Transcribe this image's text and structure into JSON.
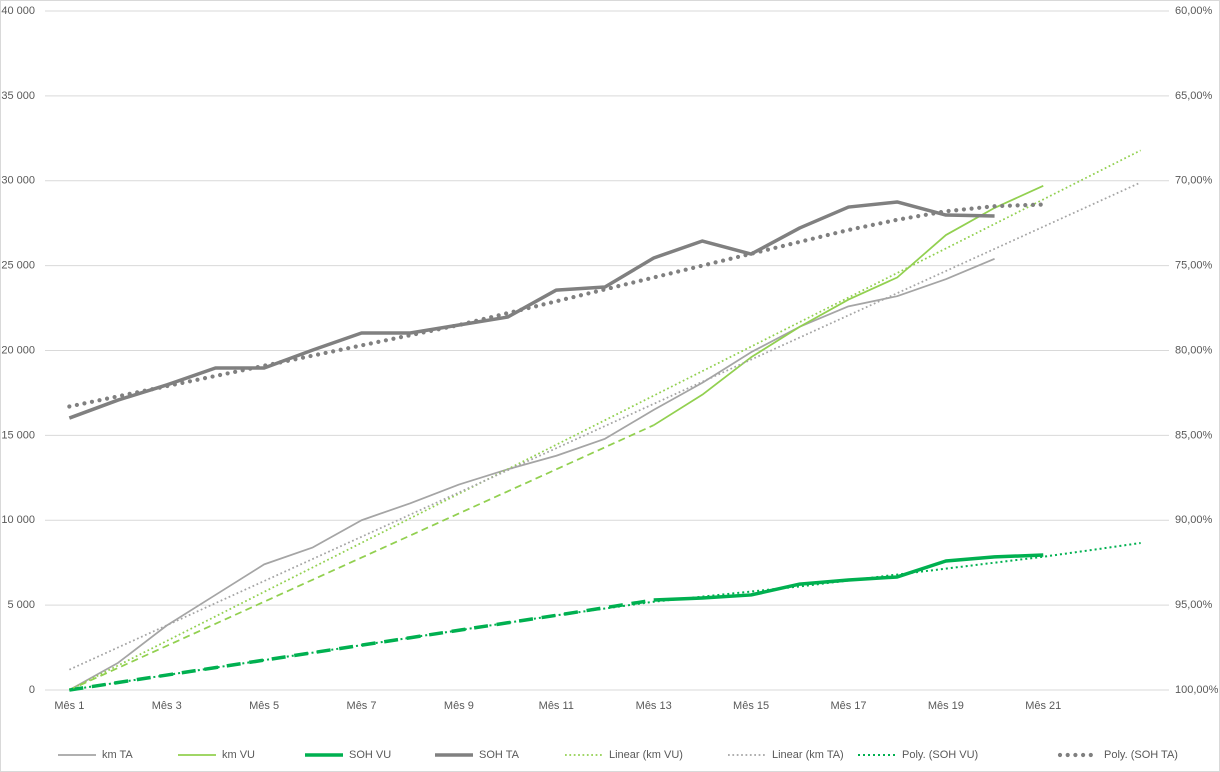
{
  "chart_data": {
    "type": "line",
    "categories": [
      "Mês 1",
      null,
      "Mês 3",
      null,
      "Mês 5",
      null,
      "Mês 7",
      null,
      "Mês 9",
      null,
      "Mês 11",
      null,
      "Mês 13",
      null,
      "Mês 15",
      null,
      "Mês 17",
      null,
      "Mês 19",
      null,
      "Mês 21",
      null,
      null
    ],
    "ylim": [
      0,
      40000
    ],
    "yticks": [
      0,
      {
        "value": 5000,
        "label": "5 000"
      },
      {
        "value": 10000,
        "label": "10 000"
      },
      {
        "value": 15000,
        "label": "15 000"
      },
      {
        "value": 20000,
        "label": "20 000"
      },
      {
        "value": 25000,
        "label": "25 000"
      },
      {
        "value": 30000,
        "label": "30 000"
      },
      {
        "value": 35000,
        "label": "35 000"
      },
      {
        "value": 40000,
        "label": "40 000"
      }
    ],
    "y2lim": [
      100,
      60
    ],
    "y2ticks": [
      {
        "value": 100,
        "label": "100,00%"
      },
      {
        "value": 95,
        "label": "95,00%"
      },
      {
        "value": 90,
        "label": "90,00%"
      },
      {
        "value": 85,
        "label": "85,00%"
      },
      {
        "value": 80,
        "label": "80,00%"
      },
      {
        "value": 75,
        "label": "75,00%"
      },
      {
        "value": 70,
        "label": "70,00%"
      },
      {
        "value": 65,
        "label": "65,00%"
      },
      {
        "value": 60,
        "label": "60,00%"
      }
    ],
    "grid": true,
    "legend": "bottom",
    "series": [
      {
        "name": "km TA",
        "color": "#a5a5a5",
        "style": "solid",
        "weight": "thin",
        "values": [
          0,
          1600,
          3800,
          5600,
          7400,
          8400,
          10000,
          11000,
          12100,
          13000,
          13800,
          14800,
          16500,
          18100,
          19900,
          21400,
          22600,
          23200,
          24200,
          25400,
          null,
          null,
          null
        ]
      },
      {
        "name": "km VU",
        "color": "#92d050",
        "style": "solid",
        "weight": "thin",
        "dashed_until": "Mês 13",
        "values": [
          0,
          1300,
          2600,
          3900,
          5200,
          6500,
          7800,
          9100,
          10400,
          11700,
          13000,
          14300,
          15600,
          17400,
          19600,
          21400,
          23000,
          24300,
          26800,
          28400,
          29700,
          null,
          null
        ]
      },
      {
        "name": "SOH VU",
        "color": "#00b050",
        "style": "solid",
        "weight": "thick",
        "axis": "y2",
        "dashed_until": "Mês 13",
        "values": [
          100,
          99.56,
          99.12,
          98.68,
          98.24,
          97.8,
          97.36,
          96.92,
          96.48,
          96.04,
          95.6,
          95.15,
          94.7,
          94.58,
          94.4,
          93.76,
          93.52,
          93.34,
          92.4,
          92.16,
          92.05,
          null,
          null
        ]
      },
      {
        "name": "SOH TA",
        "color": "#808080",
        "style": "solid",
        "weight": "thick",
        "axis": "y2",
        "values": [
          83.98,
          82.92,
          82.03,
          81.03,
          81.03,
          79.97,
          78.97,
          78.97,
          78.5,
          78.03,
          76.44,
          76.26,
          74.55,
          73.55,
          74.32,
          72.78,
          71.55,
          71.25,
          72.02,
          72.08,
          null,
          null,
          null
        ]
      },
      {
        "name": "Linear (km VU)",
        "color": "#92d050",
        "style": "dot",
        "weight": "thin",
        "values": [
          0,
          1445,
          2890,
          4335,
          5780,
          7225,
          8670,
          10115,
          11560,
          13005,
          14450,
          15895,
          17340,
          18785,
          20230,
          21675,
          23120,
          24565,
          26010,
          27455,
          28900,
          30345,
          31790
        ]
      },
      {
        "name": "Linear (km TA)",
        "color": "#a5a5a5",
        "style": "dot",
        "weight": "thin",
        "values": [
          1200,
          2505,
          3809,
          5114,
          6418,
          7723,
          9027,
          10332,
          11636,
          12941,
          14245,
          15550,
          16855,
          18159,
          19464,
          20768,
          22073,
          23377,
          24682,
          25986,
          27291,
          28595,
          29900
        ]
      },
      {
        "name": "Poly. (SOH VU)",
        "color": "#00b050",
        "style": "dot",
        "weight": "medium",
        "axis": "y2",
        "values": [
          100,
          99.56,
          99.12,
          98.68,
          98.24,
          97.8,
          97.36,
          96.92,
          96.48,
          96.04,
          95.6,
          95.2,
          94.8,
          94.5,
          94.2,
          93.9,
          93.55,
          93.2,
          92.85,
          92.5,
          92.15,
          91.75,
          91.34
        ]
      },
      {
        "name": "Poly. (SOH TA)",
        "color": "#808080",
        "style": "round-dot",
        "weight": "thick",
        "axis": "y2",
        "values": [
          83.3,
          82.7,
          82.1,
          81.5,
          80.9,
          80.3,
          79.7,
          79.1,
          78.5,
          77.8,
          77.1,
          76.4,
          75.7,
          75.0,
          74.3,
          73.6,
          72.9,
          72.3,
          71.8,
          71.5,
          71.4,
          null,
          null
        ]
      }
    ]
  }
}
